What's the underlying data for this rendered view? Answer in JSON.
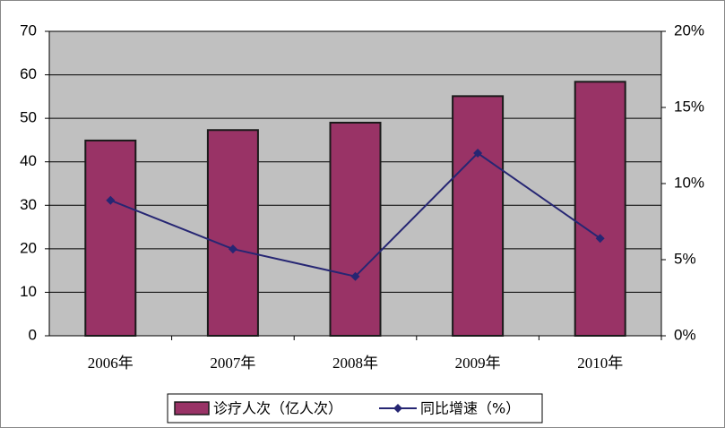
{
  "chart_data": {
    "type": "bar-line",
    "categories": [
      "2006年",
      "2007年",
      "2008年",
      "2009年",
      "2010年"
    ],
    "series": [
      {
        "name": "诊疗人次（亿人次）",
        "type": "bar",
        "color": "#993366",
        "values": [
          44.9,
          47.3,
          49.0,
          55.1,
          58.4
        ]
      },
      {
        "name": "同比增速（%）",
        "type": "line",
        "axis": "y2",
        "color": "#262673",
        "values": [
          8.9,
          5.7,
          3.9,
          12.0,
          6.4
        ]
      }
    ],
    "ylim": [
      0,
      70
    ],
    "yticks": [
      0,
      10,
      20,
      30,
      40,
      50,
      60,
      70
    ],
    "y2lim": [
      0,
      20
    ],
    "y2ticks": [
      {
        "value": 0,
        "label": "0%"
      },
      {
        "value": 5,
        "label": "5%"
      },
      {
        "value": 10,
        "label": "10%"
      },
      {
        "value": 15,
        "label": "15%"
      },
      {
        "value": 20,
        "label": "20%"
      }
    ],
    "grid": true,
    "legend": "bottom",
    "plot_background": "#c0c0c0"
  }
}
